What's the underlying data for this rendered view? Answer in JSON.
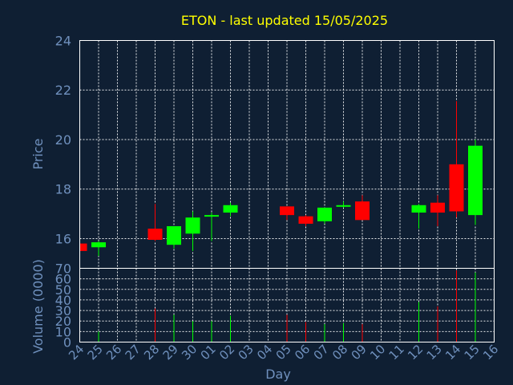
{
  "chart_data": {
    "type": "candlestick",
    "title": "ETON - last updated 15/05/2025",
    "xlabel": "Day",
    "colors": {
      "background": "#0f1f33",
      "up": "#00ff00",
      "down": "#ff0000",
      "title": "#ffff00",
      "axis_text": "#6f90bd",
      "grid": "#ffffff"
    },
    "days": [
      "24",
      "25",
      "26",
      "27",
      "28",
      "29",
      "30",
      "01",
      "02",
      "03",
      "04",
      "05",
      "06",
      "07",
      "08",
      "09",
      "10",
      "11",
      "12",
      "13",
      "14",
      "15",
      "16"
    ],
    "price_panel": {
      "ylabel": "Price",
      "ylim": [
        14.8,
        24
      ],
      "yticks": [
        16,
        18,
        20,
        22,
        24
      ],
      "candles": [
        {
          "day": "24",
          "open": 15.8,
          "high": 15.9,
          "low": 15.4,
          "close": 15.5
        },
        {
          "day": "25",
          "open": 15.65,
          "high": 15.9,
          "low": 15.3,
          "close": 15.85
        },
        {
          "day": "28",
          "open": 16.4,
          "high": 17.4,
          "low": 15.9,
          "close": 15.95
        },
        {
          "day": "29",
          "open": 15.75,
          "high": 16.5,
          "low": 15.6,
          "close": 16.5
        },
        {
          "day": "30",
          "open": 16.2,
          "high": 17.1,
          "low": 15.5,
          "close": 16.85
        },
        {
          "day": "01",
          "open": 16.9,
          "high": 17.05,
          "low": 15.9,
          "close": 16.95
        },
        {
          "day": "02",
          "open": 17.05,
          "high": 17.45,
          "low": 16.9,
          "close": 17.35
        },
        {
          "day": "05",
          "open": 17.3,
          "high": 17.3,
          "low": 16.75,
          "close": 16.95
        },
        {
          "day": "06",
          "open": 16.9,
          "high": 16.95,
          "low": 16.5,
          "close": 16.6
        },
        {
          "day": "07",
          "open": 16.7,
          "high": 17.25,
          "low": 16.6,
          "close": 17.25
        },
        {
          "day": "08",
          "open": 17.3,
          "high": 17.5,
          "low": 17.25,
          "close": 17.35
        },
        {
          "day": "09",
          "open": 17.5,
          "high": 17.75,
          "low": 16.75,
          "close": 16.75
        },
        {
          "day": "12",
          "open": 17.05,
          "high": 17.4,
          "low": 16.4,
          "close": 17.35
        },
        {
          "day": "13",
          "open": 17.45,
          "high": 17.75,
          "low": 16.5,
          "close": 17.05
        },
        {
          "day": "14",
          "open": 19.0,
          "high": 21.55,
          "low": 16.85,
          "close": 17.1
        },
        {
          "day": "15",
          "open": 16.95,
          "high": 20.0,
          "low": 16.55,
          "close": 19.75
        }
      ]
    },
    "volume_panel": {
      "ylabel": "Volume (0000)",
      "ylim": [
        0,
        70
      ],
      "yticks": [
        0,
        10,
        20,
        30,
        40,
        50,
        60,
        70
      ],
      "bars": [
        {
          "day": "25",
          "value": 10,
          "direction": "up"
        },
        {
          "day": "28",
          "value": 32,
          "direction": "down"
        },
        {
          "day": "29",
          "value": 26,
          "direction": "up"
        },
        {
          "day": "30",
          "value": 20,
          "direction": "up"
        },
        {
          "day": "01",
          "value": 20,
          "direction": "up"
        },
        {
          "day": "02",
          "value": 25,
          "direction": "up"
        },
        {
          "day": "05",
          "value": 26,
          "direction": "down"
        },
        {
          "day": "06",
          "value": 19,
          "direction": "down"
        },
        {
          "day": "07",
          "value": 17,
          "direction": "up"
        },
        {
          "day": "08",
          "value": 18,
          "direction": "up"
        },
        {
          "day": "09",
          "value": 17,
          "direction": "down"
        },
        {
          "day": "12",
          "value": 38,
          "direction": "up"
        },
        {
          "day": "13",
          "value": 34,
          "direction": "down"
        },
        {
          "day": "14",
          "value": 68,
          "direction": "down"
        },
        {
          "day": "15",
          "value": 66,
          "direction": "up"
        }
      ]
    }
  }
}
